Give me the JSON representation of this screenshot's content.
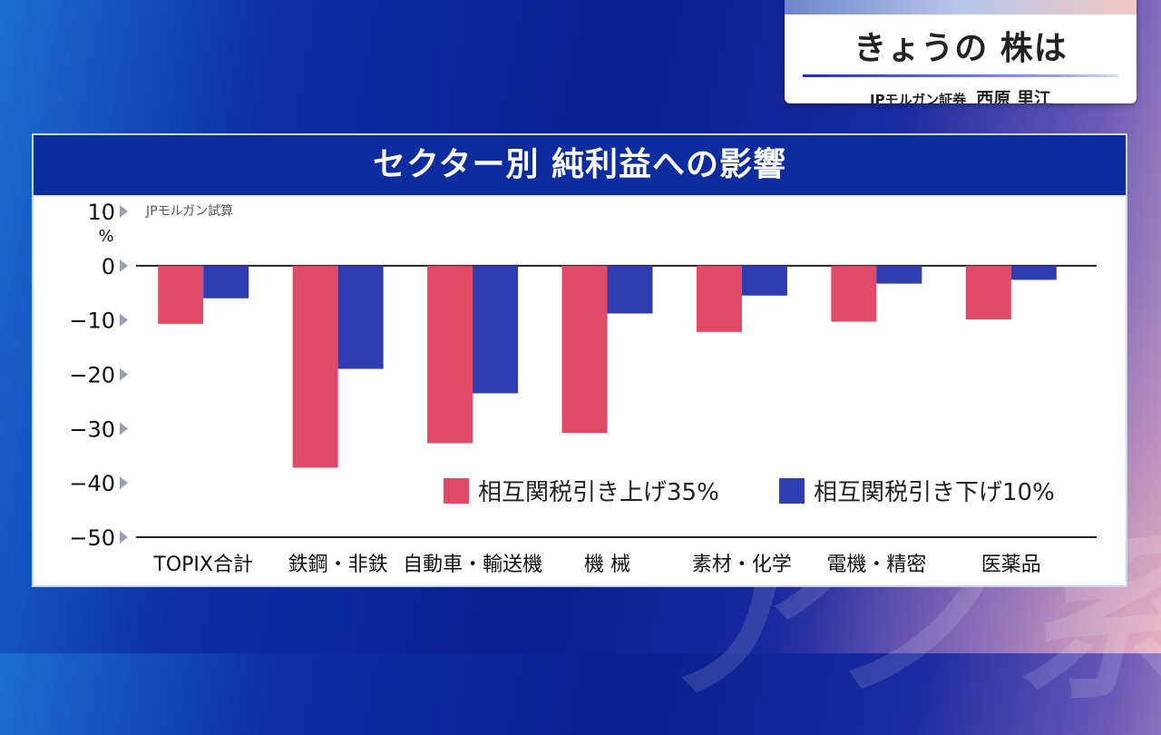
{
  "caption": {
    "title": "きょうの 株は",
    "company": "JPモルガン証券",
    "name": "西原 里江"
  },
  "panel": {
    "title": "セクター別 純利益への影響"
  },
  "colors": {
    "series1": "#e04a66",
    "series2": "#2f3db0",
    "header": "#0d2d9e"
  },
  "chart_data": {
    "type": "bar",
    "title": "セクター別 純利益への影響",
    "source_note": "JPモルガン試算",
    "ylabel": "%",
    "ylim": [
      -50,
      10
    ],
    "yticks": [
      "10",
      "0",
      "−10",
      "−20",
      "−30",
      "−40",
      "−50"
    ],
    "categories": [
      "TOPIX合計",
      "鉄鋼・非鉄",
      "自動車・輸送機",
      "機 械",
      "素材・化学",
      "電機・精密",
      "医薬品"
    ],
    "series": [
      {
        "name": "相互関税引き上げ35%",
        "color": "#e04a66",
        "values": [
          -10.7,
          -37.2,
          -32.7,
          -30.8,
          -12.2,
          -10.3,
          -9.9
        ]
      },
      {
        "name": "相互関税引き下げ10%",
        "color": "#2f3db0",
        "values": [
          -6.0,
          -19.0,
          -23.5,
          -8.8,
          -5.5,
          -3.3,
          -2.6
        ]
      }
    ],
    "legend": "bottom-right",
    "grid": false
  }
}
